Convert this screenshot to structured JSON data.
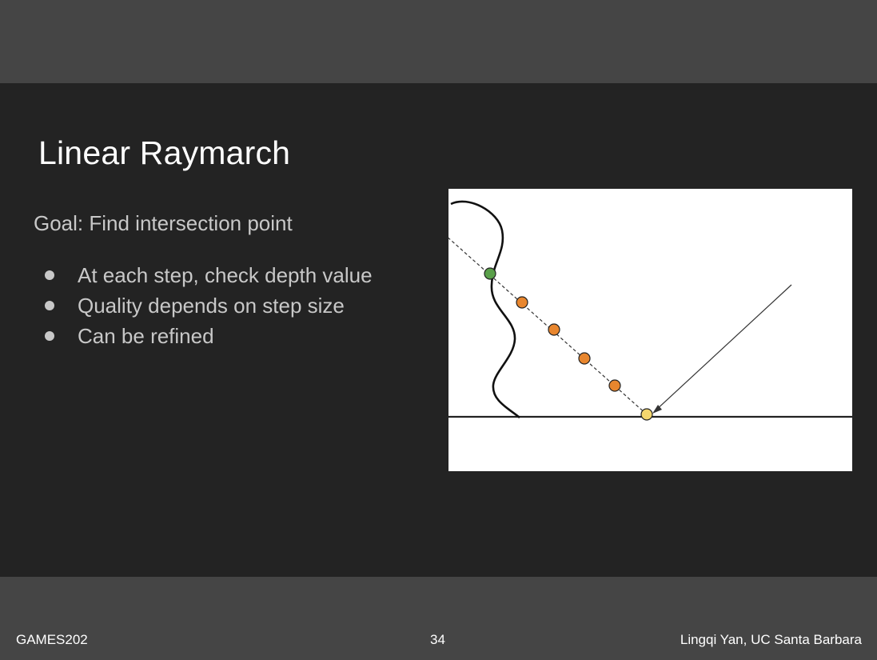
{
  "slide": {
    "title": "Linear Raymarch",
    "goal": "Goal: Find intersection point",
    "bullets": [
      "At each step, check depth value",
      "Quality depends on step size",
      "Can be refined"
    ]
  },
  "figure": {
    "colors": {
      "start_point": "#5aa04a",
      "step_points": "#e8862e",
      "hit_point": "#f5d76e",
      "background": "#ffffff",
      "stroke": "#111111"
    }
  },
  "footer": {
    "left": "GAMES202",
    "page": "34",
    "right": "Lingqi Yan, UC Santa Barbara"
  }
}
